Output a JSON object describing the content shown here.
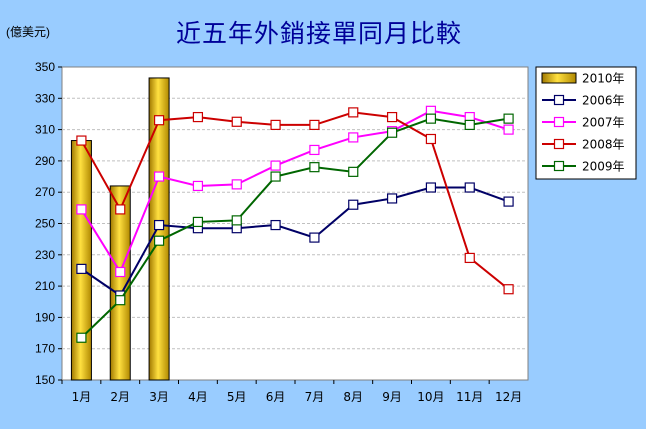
{
  "chart_data": {
    "type": "bar",
    "title": "近五年外銷接單同月比較",
    "unit_label": "(億美元)",
    "categories": [
      "1月",
      "2月",
      "3月",
      "4月",
      "5月",
      "6月",
      "7月",
      "8月",
      "9月",
      "10月",
      "11月",
      "12月"
    ],
    "y_ticks": [
      150,
      170,
      190,
      210,
      230,
      250,
      270,
      290,
      310,
      330,
      350
    ],
    "ylim": [
      150,
      350
    ],
    "grid": true,
    "legend_position": "right",
    "bar_series": {
      "name": "2010年",
      "color": "#e0b000",
      "values": [
        303,
        274,
        343,
        null,
        null,
        null,
        null,
        null,
        null,
        null,
        null,
        null
      ]
    },
    "series": [
      {
        "name": "2006年",
        "color": "#000066",
        "values": [
          221,
          204,
          249,
          247,
          247,
          249,
          241,
          262,
          266,
          273,
          273,
          264
        ]
      },
      {
        "name": "2007年",
        "color": "#ff00ff",
        "values": [
          259,
          219,
          280,
          274,
          275,
          287,
          297,
          305,
          309,
          322,
          318,
          310
        ]
      },
      {
        "name": "2008年",
        "color": "#cc0000",
        "values": [
          303,
          259,
          316,
          318,
          315,
          313,
          313,
          321,
          318,
          304,
          228,
          208
        ]
      },
      {
        "name": "2009年",
        "color": "#006600",
        "values": [
          177,
          201,
          239,
          251,
          252,
          280,
          286,
          283,
          308,
          317,
          313,
          317
        ]
      }
    ],
    "colors": {
      "background": "#99ccff",
      "plot_area": "#ffffff",
      "title": "#000099",
      "gridline": "#c0c0c0"
    }
  }
}
